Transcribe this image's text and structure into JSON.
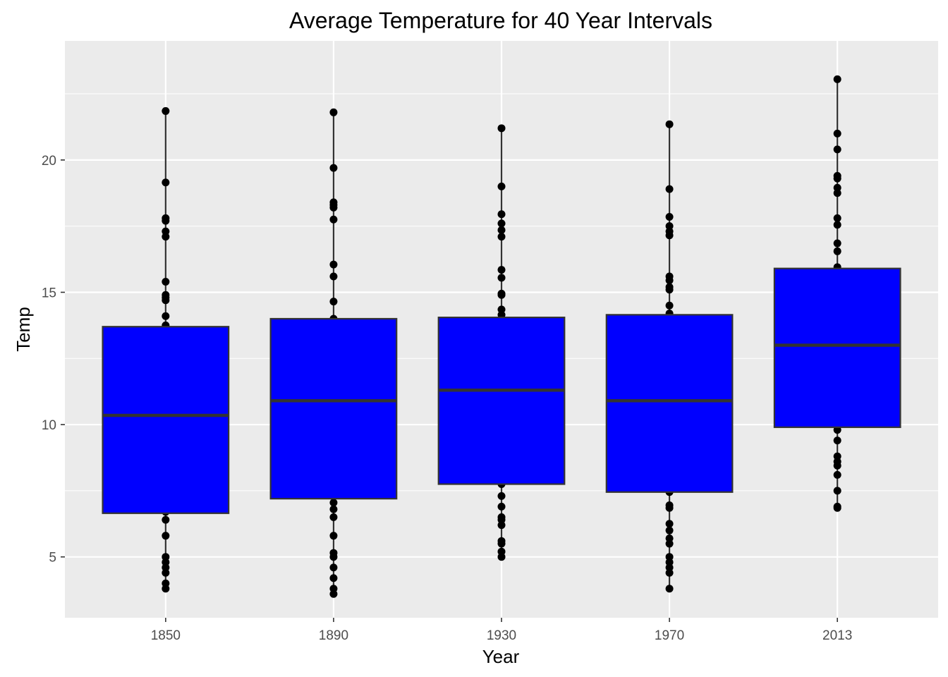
{
  "chart_data": {
    "type": "box",
    "title": "Average Temperature for 40 Year Intervals",
    "xlabel": "Year",
    "ylabel": "Temp",
    "categories": [
      "1850",
      "1890",
      "1930",
      "1970",
      "2013"
    ],
    "ylim": [
      2.7,
      24.5
    ],
    "yticks": [
      5,
      10,
      15,
      20
    ],
    "grid": true,
    "colors": {
      "panel": "#ebebeb",
      "grid": "#ffffff",
      "box_fill": "#0000ff",
      "box_line": "#333333",
      "point": "#000000",
      "tick_label": "#4d4d4d"
    },
    "boxes": [
      {
        "category": "1850",
        "lower_whisker": 3.8,
        "q1": 6.65,
        "median": 10.35,
        "q3": 13.7,
        "upper_whisker": 21.85
      },
      {
        "category": "1890",
        "lower_whisker": 3.6,
        "q1": 7.2,
        "median": 10.9,
        "q3": 14.0,
        "upper_whisker": 21.8
      },
      {
        "category": "1930",
        "lower_whisker": 5.0,
        "q1": 7.75,
        "median": 11.3,
        "q3": 14.05,
        "upper_whisker": 21.2
      },
      {
        "category": "1970",
        "lower_whisker": 3.8,
        "q1": 7.45,
        "median": 10.9,
        "q3": 14.15,
        "upper_whisker": 21.35
      },
      {
        "category": "2013",
        "lower_whisker": 6.85,
        "q1": 9.9,
        "median": 13.0,
        "q3": 15.9,
        "upper_whisker": 23.05
      }
    ],
    "points": [
      {
        "category": "1850",
        "values": [
          21.85,
          19.15,
          17.8,
          17.7,
          17.3,
          17.1,
          15.4,
          14.9,
          14.8,
          14.7,
          14.1,
          13.75,
          6.7,
          6.4,
          5.8,
          5.0,
          4.8,
          4.6,
          4.4,
          4.0,
          3.8
        ]
      },
      {
        "category": "1890",
        "values": [
          21.8,
          19.7,
          18.4,
          18.3,
          18.2,
          17.75,
          16.05,
          15.6,
          14.65,
          14.0,
          7.05,
          6.8,
          6.5,
          5.8,
          5.15,
          5.0,
          4.6,
          4.2,
          3.8,
          3.6
        ]
      },
      {
        "category": "1930",
        "values": [
          21.2,
          19.0,
          17.95,
          17.6,
          17.35,
          17.1,
          15.85,
          15.55,
          14.95,
          14.9,
          14.35,
          14.15,
          7.75,
          7.3,
          6.9,
          6.5,
          6.4,
          6.2,
          5.6,
          5.5,
          5.2,
          5.0
        ]
      },
      {
        "category": "1970",
        "values": [
          21.35,
          18.9,
          17.85,
          17.5,
          17.3,
          17.15,
          15.6,
          15.45,
          15.2,
          15.1,
          14.5,
          14.2,
          7.45,
          6.95,
          6.85,
          6.25,
          6.0,
          5.7,
          5.5,
          5.0,
          4.8,
          4.6,
          4.4,
          3.8
        ]
      },
      {
        "category": "2013",
        "values": [
          23.05,
          21.0,
          20.4,
          19.4,
          19.3,
          18.95,
          18.75,
          17.8,
          17.55,
          16.85,
          16.55,
          15.95,
          9.8,
          9.4,
          8.8,
          8.6,
          8.45,
          8.1,
          7.5,
          6.9,
          6.85
        ]
      }
    ]
  }
}
